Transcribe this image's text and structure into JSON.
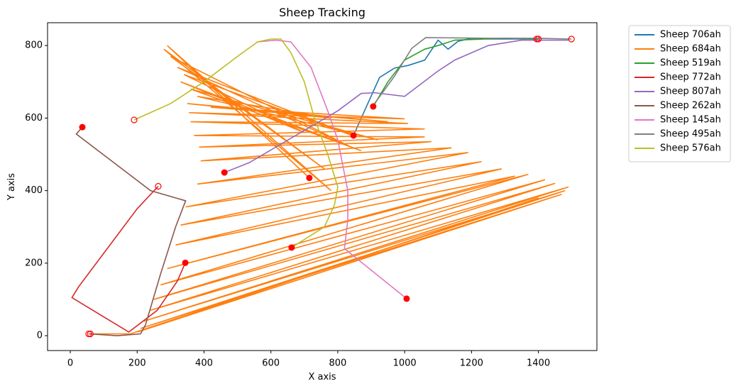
{
  "chart_data": {
    "type": "line",
    "title": "Sheep Tracking",
    "x_label": "X axis",
    "y_label": "Y axis",
    "xlim": [
      -68,
      1575
    ],
    "ylim": [
      -41,
      863
    ],
    "xticks": [
      0,
      200,
      400,
      600,
      800,
      1000,
      1200,
      1400
    ],
    "yticks": [
      0,
      200,
      400,
      600,
      800
    ],
    "marker_color": "#ff0000",
    "legend": "outside upper right",
    "grid": false,
    "series": [
      {
        "name": "Sheep 706ah",
        "color": "#1f77b4",
        "start_marker": true,
        "end_marker": true,
        "x": [
          847,
          880,
          925,
          970,
          1010,
          1060,
          1100,
          1130,
          1160,
          1200,
          1250,
          1400
        ],
        "values": [
          552,
          620,
          712,
          738,
          745,
          760,
          815,
          790,
          812,
          820,
          818,
          818
        ]
      },
      {
        "name": "Sheep 684ah",
        "color": "#ff7f0e",
        "start_marker": true,
        "end_marker": true,
        "x": [
          715,
          290,
          780,
          280,
          760,
          300,
          840,
          320,
          850,
          340,
          700,
          330,
          870,
          360,
          920,
          380,
          780,
          350,
          950,
          420,
          1000,
          355,
          1010,
          360,
          1060,
          370,
          1060,
          385,
          1080,
          390,
          1140,
          380,
          1190,
          345,
          1230,
          330,
          1290,
          315,
          1330,
          290,
          1370,
          270,
          1420,
          250,
          1450,
          240,
          1490,
          220,
          1480,
          210,
          1470,
          200,
          1400,
          180,
          60
        ],
        "values": [
          435,
          800,
          400,
          790,
          460,
          770,
          520,
          740,
          550,
          720,
          560,
          700,
          510,
          680,
          540,
          660,
          600,
          640,
          590,
          630,
          598,
          615,
          585,
          590,
          570,
          552,
          548,
          520,
          535,
          482,
          518,
          418,
          505,
          355,
          480,
          305,
          460,
          250,
          440,
          185,
          445,
          140,
          430,
          100,
          420,
          70,
          410,
          40,
          400,
          20,
          390,
          10,
          380,
          5,
          5
        ]
      },
      {
        "name": "Sheep 519ah",
        "color": "#2ca02c",
        "start_marker": true,
        "end_marker": true,
        "x": [
          906,
          950,
          1000,
          1060,
          1100,
          1150,
          1300,
          1395
        ],
        "values": [
          632,
          700,
          760,
          790,
          800,
          815,
          820,
          818
        ]
      },
      {
        "name": "Sheep 772ah",
        "color": "#d62728",
        "start_marker": true,
        "end_marker": true,
        "x": [
          344,
          320,
          260,
          175,
          5,
          25,
          200,
          263
        ],
        "values": [
          201,
          150,
          70,
          10,
          105,
          135,
          350,
          412
        ]
      },
      {
        "name": "Sheep 807ah",
        "color": "#9467bd",
        "start_marker": true,
        "end_marker": false,
        "x": [
          461,
          535,
          800,
          870,
          910,
          1000,
          1050,
          1100,
          1150,
          1200,
          1250,
          1350,
          1490
        ],
        "values": [
          450,
          477,
          620,
          668,
          670,
          660,
          695,
          730,
          760,
          780,
          800,
          815,
          815
        ]
      },
      {
        "name": "Sheep 262ah",
        "color": "#8c564b",
        "start_marker": true,
        "end_marker": true,
        "x": [
          36,
          18,
          240,
          345,
          315,
          270,
          225,
          210,
          140,
          55
        ],
        "values": [
          575,
          556,
          400,
          372,
          300,
          170,
          30,
          5,
          0,
          5
        ]
      },
      {
        "name": "Sheep 145ah",
        "color": "#e377c2",
        "start_marker": true,
        "end_marker": false,
        "x": [
          1006,
          820,
          830,
          830,
          800,
          770,
          720,
          660,
          615,
          560
        ],
        "values": [
          102,
          240,
          320,
          400,
          540,
          620,
          740,
          810,
          815,
          810
        ]
      },
      {
        "name": "Sheep 495ah",
        "color": "#7f7f7f",
        "start_marker": false,
        "end_marker": true,
        "x": [
          910,
          970,
          1021,
          1063,
          1250,
          1403,
          1499
        ],
        "values": [
          640,
          716,
          792,
          822,
          820,
          820,
          818
        ]
      },
      {
        "name": "Sheep 576ah",
        "color": "#bcbd22",
        "start_marker": true,
        "end_marker": true,
        "x": [
          662,
          760,
          790,
          800,
          770,
          730,
          700,
          660,
          630,
          600,
          560,
          500,
          400,
          300,
          191
        ],
        "values": [
          243,
          300,
          360,
          410,
          500,
          600,
          700,
          780,
          818,
          818,
          810,
          770,
          700,
          640,
          595
        ]
      }
    ]
  }
}
